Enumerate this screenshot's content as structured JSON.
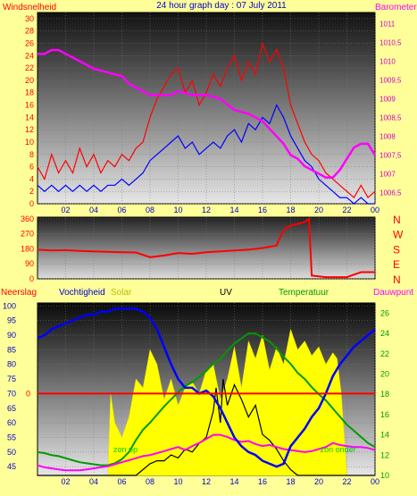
{
  "chart_data": [
    {
      "type": "line",
      "title": "24 hour graph day : 07 July 2011",
      "left_label": "Windsnelheid",
      "right_label": "Barometer",
      "x_ticks": [
        "02",
        "04",
        "06",
        "08",
        "10",
        "12",
        "14",
        "16",
        "18",
        "20",
        "22",
        "00"
      ],
      "y_left_ticks": [
        "0",
        "2",
        "4",
        "6",
        "8",
        "10",
        "12",
        "14",
        "16",
        "18",
        "20",
        "22",
        "24",
        "26",
        "28",
        "30"
      ],
      "y_left_range": [
        0,
        31
      ],
      "y_right_ticks": [
        "1006,5",
        "1007",
        "1007,5",
        "1008",
        "1008,5",
        "1009",
        "1009,5",
        "1010",
        "1010,5",
        "1011"
      ],
      "y_right_range": [
        1006.2,
        1011.3
      ],
      "colors": {
        "gust": "#ff0000",
        "wind": "#0000ff",
        "barometer": "#ff00ff"
      },
      "series": [
        {
          "key": "barometer",
          "axis": "right",
          "x": [
            0,
            0.5,
            1,
            1.5,
            2,
            3,
            4,
            5,
            6,
            6.5,
            7,
            7.5,
            8,
            8.5,
            9,
            9.5,
            10,
            11,
            12,
            13,
            14,
            15,
            16,
            16.5,
            17,
            17.5,
            18,
            18.5,
            19,
            19.5,
            20,
            20.5,
            21,
            21.5,
            22,
            22.5,
            23,
            23.5,
            24
          ],
          "y": [
            1010.2,
            1010.2,
            1010.3,
            1010.3,
            1010.2,
            1010,
            1009.8,
            1009.7,
            1009.6,
            1009.4,
            1009.3,
            1009.2,
            1009.1,
            1009.1,
            1009.1,
            1009.1,
            1009.2,
            1009.1,
            1009.1,
            1009,
            1008.7,
            1008.6,
            1008.4,
            1008.2,
            1008,
            1007.8,
            1007.5,
            1007.4,
            1007.2,
            1007.1,
            1007,
            1006.9,
            1006.9,
            1007.1,
            1007.4,
            1007.7,
            1007.8,
            1007.8,
            1007.5
          ]
        },
        {
          "key": "wind",
          "axis": "left",
          "x": [
            0,
            0.5,
            1,
            1.5,
            2,
            2.5,
            3,
            3.5,
            4,
            4.5,
            5,
            5.5,
            6,
            6.5,
            7,
            7.5,
            8,
            8.5,
            9,
            9.5,
            10,
            10.5,
            11,
            11.5,
            12,
            12.5,
            13,
            13.5,
            14,
            14.5,
            15,
            15.5,
            16,
            16.5,
            17,
            17.5,
            18,
            18.5,
            19,
            19.5,
            20,
            20.5,
            21,
            21.5,
            22,
            22.5,
            23,
            23.5,
            24
          ],
          "y": [
            3,
            2,
            3,
            2,
            3,
            2,
            3,
            2,
            3,
            2,
            3,
            3,
            4,
            3,
            4,
            5,
            7,
            8,
            9,
            10,
            11,
            9,
            10,
            8,
            9,
            10,
            9,
            11,
            12,
            10,
            13,
            12,
            14,
            13,
            16,
            14,
            11,
            9,
            7,
            6,
            4,
            3,
            2,
            1,
            1,
            0,
            1,
            0,
            0
          ]
        },
        {
          "key": "gust",
          "axis": "left",
          "x": [
            0,
            0.5,
            1,
            1.5,
            2,
            2.5,
            3,
            3.5,
            4,
            4.5,
            5,
            5.5,
            6,
            6.5,
            7,
            7.5,
            8,
            8.5,
            9,
            9.5,
            10,
            10.5,
            11,
            11.5,
            12,
            12.5,
            13,
            13.5,
            14,
            14.5,
            15,
            15.5,
            16,
            16.5,
            17,
            17.5,
            18,
            18.5,
            19,
            19.5,
            20,
            20.5,
            21,
            21.5,
            22,
            22.5,
            23,
            23.5,
            24
          ],
          "y": [
            6,
            4,
            8,
            5,
            7,
            5,
            9,
            6,
            8,
            5,
            7,
            6,
            8,
            7,
            9,
            10,
            14,
            17,
            19,
            21,
            22,
            18,
            20,
            16,
            18,
            21,
            19,
            22,
            24,
            20,
            23,
            21,
            26,
            23,
            25,
            22,
            16,
            13,
            10,
            8,
            7,
            5,
            4,
            3,
            2,
            1,
            3,
            1,
            2
          ]
        }
      ]
    },
    {
      "type": "line",
      "title": "",
      "right_label": [
        "N",
        "W",
        "S",
        "E",
        "N"
      ],
      "y_left_ticks": [
        "0",
        "90",
        "180",
        "270",
        "360"
      ],
      "y_left_range": [
        0,
        370
      ],
      "colors": {
        "direction": "#ff0000"
      },
      "series": [
        {
          "key": "direction",
          "axis": "left",
          "x": [
            0,
            1,
            2,
            3,
            4,
            5,
            6,
            7,
            8,
            9,
            10,
            11,
            12,
            13,
            14,
            15,
            16,
            17,
            17.3,
            17.6,
            18,
            18.5,
            19,
            19.3,
            19.5,
            20,
            20.5,
            21,
            22,
            23,
            24
          ],
          "y": [
            175,
            170,
            172,
            168,
            165,
            162,
            160,
            158,
            130,
            140,
            155,
            150,
            160,
            165,
            170,
            175,
            185,
            200,
            260,
            300,
            320,
            330,
            340,
            360,
            20,
            15,
            10,
            10,
            10,
            40,
            40
          ]
        }
      ]
    },
    {
      "type": "line",
      "title": "",
      "legend": [
        "Neerslag",
        "Vochtigheid",
        "Solar",
        "UV",
        "Temperatuur",
        "Dauwpunt"
      ],
      "annotations": [
        "zon op",
        "zon onder"
      ],
      "x_ticks": [
        "02",
        "04",
        "06",
        "08",
        "10",
        "12",
        "14",
        "16",
        "18",
        "20",
        "22",
        "00"
      ],
      "y_left_ticks": [
        "45",
        "50",
        "55",
        "60",
        "65",
        "70",
        "75",
        "80",
        "85",
        "90",
        "95",
        "100"
      ],
      "y_left_range": [
        42,
        101
      ],
      "y_left_zero_label": "0",
      "y_left_zero_value": 70,
      "y_right_ticks": [
        "10",
        "12",
        "14",
        "16",
        "18",
        "20",
        "22",
        "24",
        "26"
      ],
      "y_right_range": [
        10,
        27
      ],
      "colors": {
        "neerslag": "#ff0000",
        "humidity": "#0000ff",
        "solar": "#ffff00",
        "uv": "#000000",
        "temperature": "#009900",
        "dewpoint": "#ff00ff"
      },
      "series": [
        {
          "key": "solar",
          "axis": "left",
          "x": [
            0,
            5,
            5.2,
            5.5,
            6,
            6.5,
            7,
            7.5,
            8,
            8.5,
            9,
            9.5,
            10,
            10.5,
            11,
            11.5,
            12,
            12.5,
            13,
            13.5,
            14,
            14.5,
            15,
            15.5,
            16,
            16.5,
            17,
            17.5,
            18,
            18.5,
            19,
            19.5,
            20,
            20.5,
            21,
            21.3,
            21.6,
            22,
            24
          ],
          "y": [
            42,
            42,
            70,
            60,
            55,
            62,
            75,
            72,
            85,
            80,
            68,
            75,
            66,
            72,
            74,
            70,
            78,
            80,
            68,
            75,
            86,
            72,
            88,
            82,
            90,
            78,
            86,
            80,
            92,
            85,
            88,
            83,
            86,
            80,
            84,
            82,
            70,
            42,
            42
          ]
        },
        {
          "key": "humidity",
          "axis": "left",
          "x": [
            0,
            0.5,
            1,
            1.5,
            2,
            2.5,
            3,
            3.5,
            4,
            4.5,
            5,
            5.5,
            6,
            6.5,
            7,
            7.5,
            8,
            8.5,
            9,
            9.5,
            10,
            10.5,
            11,
            11.5,
            12,
            12.5,
            13,
            13.5,
            14,
            14.5,
            15,
            15.5,
            16,
            16.5,
            17,
            17.5,
            18,
            18.5,
            19,
            19.5,
            20,
            20.5,
            21,
            21.5,
            22,
            22.5,
            23,
            23.5,
            24
          ],
          "y": [
            89,
            90,
            92,
            93,
            94,
            95,
            96,
            97,
            97,
            98,
            98,
            99,
            99,
            99,
            99,
            98,
            96,
            92,
            86,
            80,
            75,
            72,
            72,
            70,
            71,
            69,
            65,
            60,
            55,
            52,
            50,
            49,
            47,
            46,
            45,
            46,
            52,
            55,
            58,
            62,
            65,
            70,
            76,
            80,
            83,
            86,
            88,
            90,
            92
          ]
        },
        {
          "key": "temperature",
          "axis": "right",
          "x": [
            0,
            0.5,
            1,
            1.5,
            2,
            2.5,
            3,
            3.5,
            4,
            4.5,
            5,
            5.5,
            6,
            6.5,
            7,
            7.5,
            8,
            8.5,
            9,
            9.5,
            10,
            10.5,
            11,
            11.5,
            12,
            12.5,
            13,
            13.5,
            14,
            14.5,
            15,
            15.5,
            16,
            16.5,
            17,
            17.5,
            18,
            18.5,
            19,
            19.5,
            20,
            20.5,
            21,
            21.5,
            22,
            22.5,
            23,
            23.5,
            24
          ],
          "y": [
            12.3,
            12.2,
            12,
            11.9,
            11.7,
            11.5,
            11.3,
            11.2,
            11.1,
            11,
            11,
            11.2,
            11.6,
            12.3,
            13.5,
            14.5,
            15.2,
            16,
            16.8,
            17.5,
            18.2,
            18.8,
            19.2,
            19.7,
            20.3,
            21,
            21.5,
            22.3,
            23,
            23.5,
            24,
            24,
            23.6,
            23.2,
            22.5,
            21.7,
            21,
            20.1,
            19.5,
            18.7,
            18,
            17.4,
            16.6,
            15.8,
            15,
            14.4,
            13.8,
            13.2,
            12.8
          ]
        },
        {
          "key": "dewpoint",
          "axis": "right",
          "x": [
            0,
            0.5,
            1,
            1.5,
            2,
            2.5,
            3,
            3.5,
            4,
            4.5,
            5,
            5.5,
            6,
            6.5,
            7,
            7.5,
            8,
            8.5,
            9,
            9.5,
            10,
            10.5,
            11,
            11.5,
            12,
            12.5,
            13,
            13.5,
            14,
            14.5,
            15,
            15.5,
            16,
            16.5,
            17,
            17.5,
            18,
            18.5,
            19,
            19.5,
            20,
            20.5,
            21,
            21.5,
            22,
            22.5,
            23,
            23.5,
            24
          ],
          "y": [
            11,
            10.8,
            10.7,
            10.6,
            10.5,
            10.5,
            10.5,
            10.6,
            10.7,
            10.8,
            10.9,
            11.1,
            11.3,
            11.5,
            11.7,
            11.9,
            12,
            12.2,
            12.4,
            12.6,
            12.8,
            12.5,
            12.9,
            13.2,
            13.6,
            14,
            14,
            13.8,
            13.5,
            13.3,
            13.4,
            13.1,
            12.9,
            13,
            12.8,
            12.6,
            12.5,
            12.4,
            12.3,
            12.4,
            12.6,
            12.8,
            13.2,
            13,
            12.9,
            12.8,
            12.8,
            12.7,
            12.5
          ]
        },
        {
          "key": "uv",
          "axis": "left",
          "x": [
            0,
            7,
            7.5,
            8,
            8.5,
            9,
            9.5,
            10,
            10.5,
            11,
            11.5,
            12,
            12.5,
            12.7,
            13,
            13.2,
            13.5,
            14,
            14.5,
            15,
            15.5,
            16,
            16.5,
            17,
            17.5,
            18,
            18.5,
            24
          ],
          "y": [
            42,
            42,
            44,
            46,
            47,
            47,
            49,
            48,
            51,
            50,
            53,
            55,
            64,
            72,
            60,
            75,
            66,
            73,
            68,
            62,
            66,
            56,
            54,
            51,
            47,
            44,
            42,
            42
          ]
        },
        {
          "key": "neerslag",
          "axis": "left",
          "x": [
            0,
            24
          ],
          "y": [
            70,
            70
          ]
        }
      ]
    }
  ]
}
